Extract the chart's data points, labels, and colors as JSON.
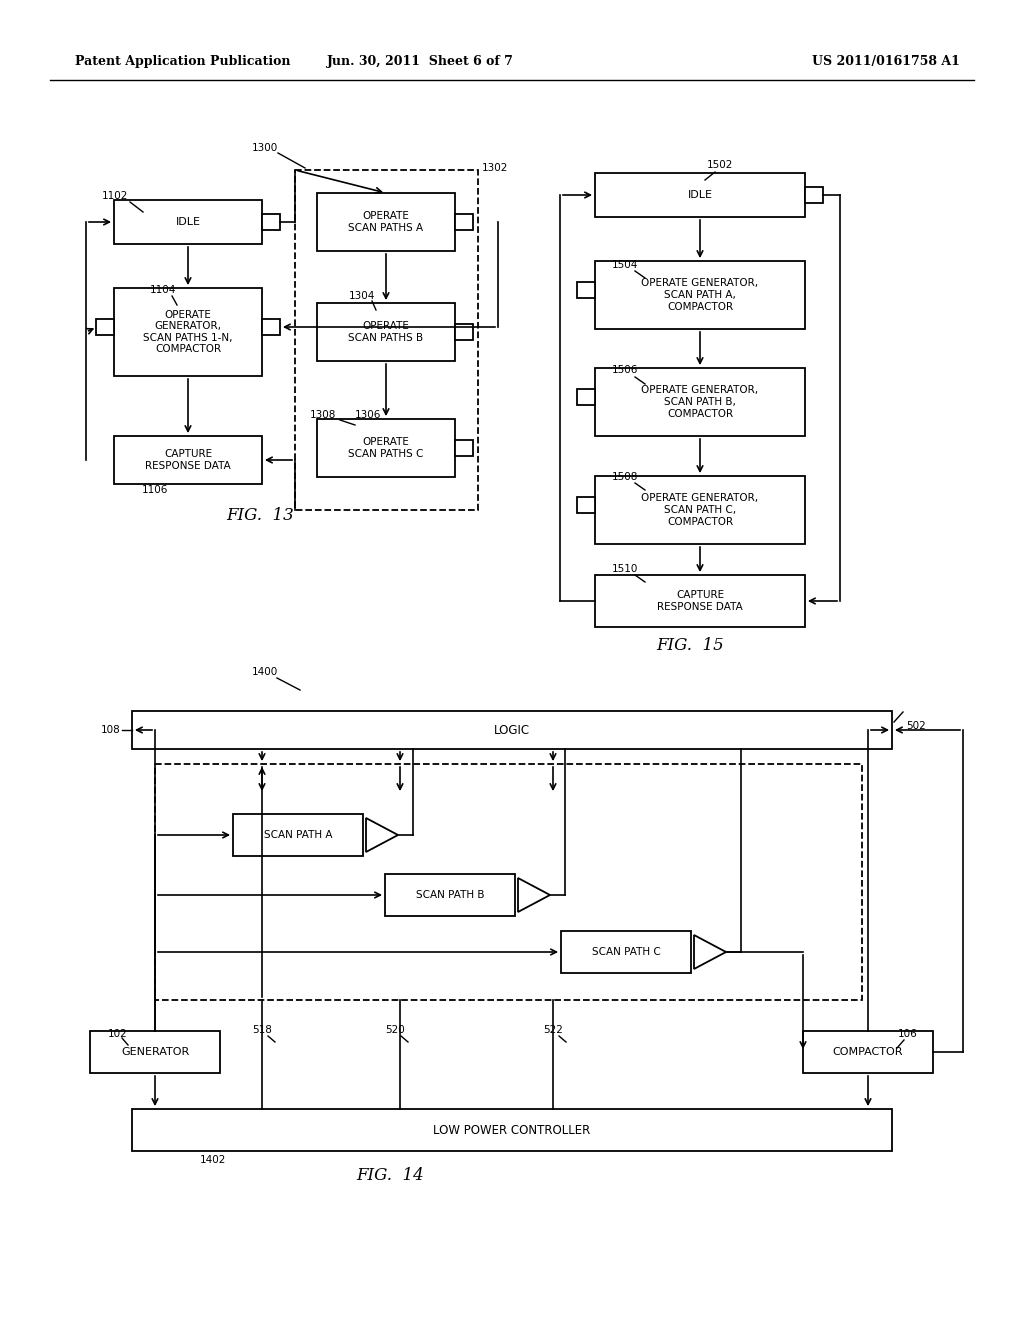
{
  "header_left": "Patent Application Publication",
  "header_mid": "Jun. 30, 2011  Sheet 6 of 7",
  "header_right": "US 2011/0161758 A1",
  "bg_color": "#ffffff",
  "text_color": "#000000"
}
